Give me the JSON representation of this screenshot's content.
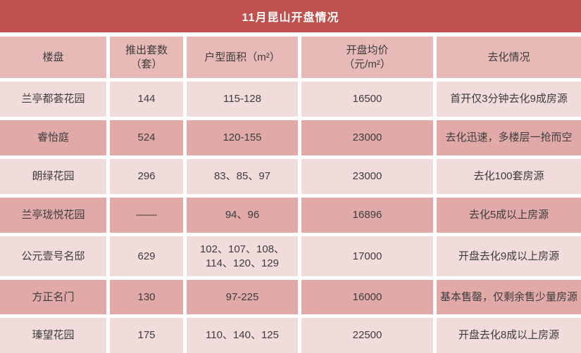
{
  "title": "11月昆山开盘情况",
  "colors": {
    "banner": "#c0504d",
    "banner_text": "#ffffff",
    "header_row": "#e7b9b7",
    "row_light": "#f2dcdb",
    "row_dark": "#e1a9a7",
    "cell_text": "#3d3d3d",
    "grid_gap": "#ffffff"
  },
  "header": {
    "columns": [
      {
        "line1": "楼盘",
        "line2": ""
      },
      {
        "line1": "推出套数",
        "line2": "（套）"
      },
      {
        "line1": "户型面积（m²）",
        "line2": ""
      },
      {
        "line1": "开盘均价",
        "line2": "（元/m²）"
      },
      {
        "line1": "去化情况",
        "line2": ""
      }
    ]
  },
  "chart_data": {
    "type": "table",
    "title": "11月昆山开盘情况",
    "columns": [
      "楼盘",
      "推出套数（套）",
      "户型面积（m²）",
      "开盘均价（元/m²）",
      "去化情况"
    ],
    "rows": [
      [
        "兰亭都荟花园",
        "144",
        "115-128",
        "16500",
        "首开仅3分钟去化9成房源"
      ],
      [
        "睿怡庭",
        "524",
        "120-155",
        "23000",
        "去化迅速，多楼层一抢而空"
      ],
      [
        "朗绿花园",
        "296",
        "83、85、97",
        "23000",
        "去化100套房源"
      ],
      [
        "兰亭珑悦花园",
        "——",
        "94、96",
        "16896",
        "去化5成以上房源"
      ],
      [
        "公元壹号名邸",
        "629",
        "102、107、108、114、120、129",
        "17000",
        "开盘去化9成以上房源"
      ],
      [
        "方正名门",
        "130",
        "97-225",
        "16000",
        "基本售罄，仅剩余售少量房源"
      ],
      [
        "瑧望花园",
        "175",
        "110、140、125",
        "22500",
        "开盘去化8成以上房源"
      ]
    ]
  }
}
